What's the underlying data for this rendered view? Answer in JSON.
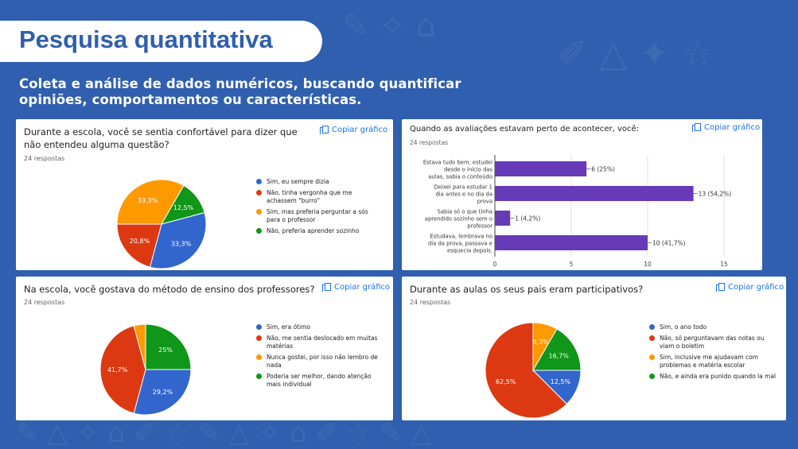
{
  "title": "Pesquisa quantitativa",
  "subtitle": "Coleta e análise de dados numéricos, buscando quantificar opiniões, comportamentos ou características.",
  "copy_label": "Copiar gráfico",
  "colors": {
    "blue": "#3366cc",
    "red": "#dc3912",
    "orange": "#ff9900",
    "green": "#109618",
    "purple": "#673ab7",
    "background": "#2f5fae"
  },
  "chart_data": [
    {
      "type": "pie",
      "title": "Durante a escola, você se sentia confortável para dizer que não entendeu alguma questão?",
      "responses": "24 respostas",
      "legend_position": "right",
      "categories": [
        "Sim, eu sempre dizia",
        "Não, tinha vergonha que me achassem \"burro\"",
        "Sim, mas preferia perguntar a sós para o professor",
        "Não, preferia aprender sozinho"
      ],
      "values": [
        33.3,
        20.8,
        33.3,
        12.5
      ],
      "labels": [
        "33,3%",
        "20,8%",
        "33,3%",
        "12,5%"
      ]
    },
    {
      "type": "bar",
      "orientation": "horizontal",
      "title": "Quando as avaliações estavam perto de acontecer, você:",
      "responses": "24 respostas",
      "categories": [
        "Estava tudo bem, estudei desde o início das aulas, sabia o conteúdo",
        "Deixei para estudar 1 dia antes e no dia da prova",
        "Sabia só o que tinha aprendido sozinho sem o professor",
        "Estudava, lembrava no dia da prova, passava e esquecia depois."
      ],
      "values": [
        6,
        13,
        1,
        10
      ],
      "labels": [
        "6 (25%)",
        "13 (54,2%)",
        "1 (4,2%)",
        "10 (41,7%)"
      ],
      "xlim": [
        0,
        15
      ],
      "xticks": [
        "0",
        "5",
        "10",
        "15"
      ]
    },
    {
      "type": "pie",
      "title": "Na escola, você gostava do método de ensino dos professores?",
      "responses": "24 respostas",
      "legend_position": "right",
      "categories": [
        "Sim, era ótimo",
        "Não, me sentia deslocado em muitas matérias",
        "Nunca gostei, por isso não lembro de nada",
        "Poderia ser melhor, dando atenção mais individual"
      ],
      "values": [
        29.2,
        41.7,
        4.2,
        25
      ],
      "labels": [
        "29,2%",
        "41,7%",
        "",
        "25%"
      ]
    },
    {
      "type": "pie",
      "title": "Durante as aulas os seus pais eram participativos?",
      "responses": "24 respostas",
      "legend_position": "right",
      "categories": [
        "Sim, o ano todo",
        "Não, só perguntavam das notas ou viam o boletim",
        "Sim, inclusive me ajudavam com problemas e matéria escolar",
        "Não, e ainda era punido quando la mal"
      ],
      "values": [
        12.5,
        62.5,
        8.3,
        16.7
      ],
      "labels": [
        "12,5%",
        "62,5%",
        "8,3%",
        "16,7%"
      ]
    }
  ]
}
